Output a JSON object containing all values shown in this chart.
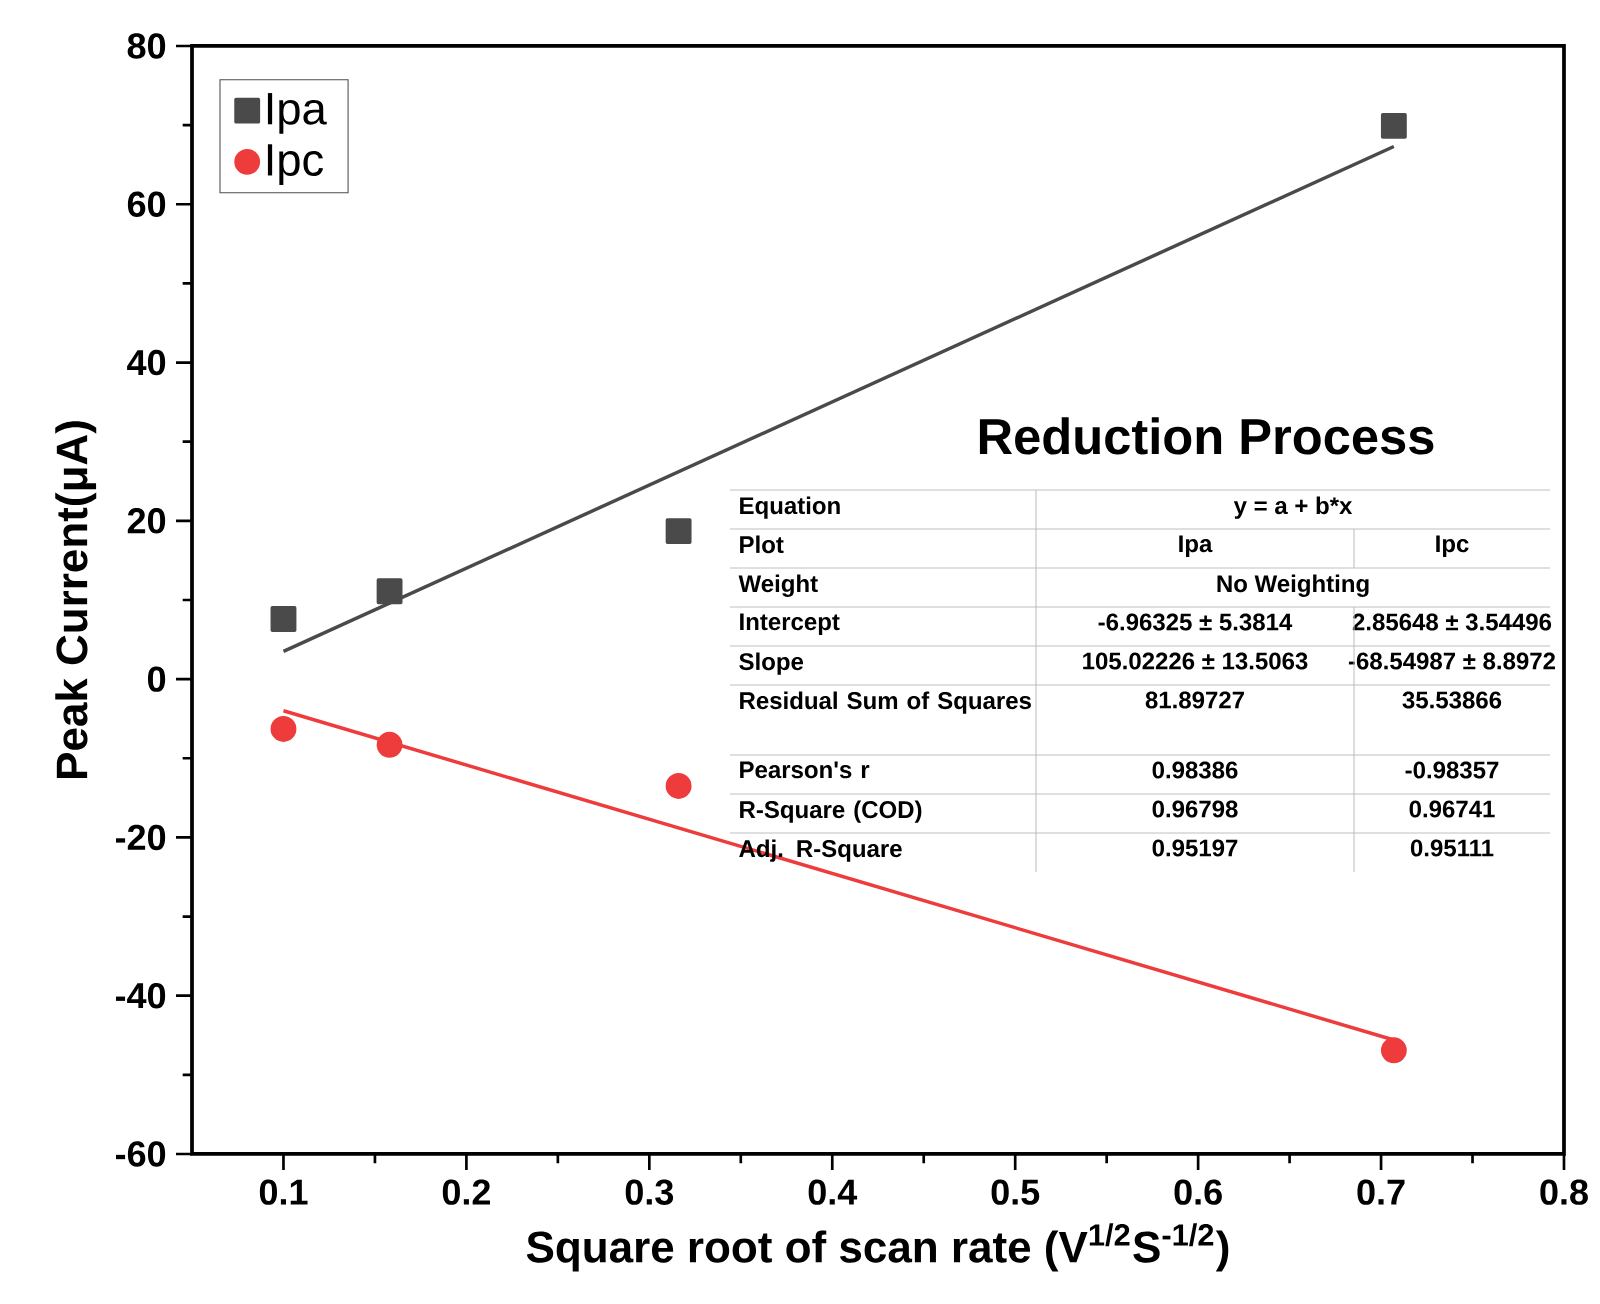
{
  "chart_data": {
    "type": "scatter",
    "xlabel": "Square root of scan rate (V$^{1/2}$S$^{-1/2}$)",
    "ylabel": "Peak Current(μA)",
    "xlim": [
      0.05,
      0.8
    ],
    "xticks": [
      0.1,
      0.2,
      0.3,
      0.4,
      0.5,
      0.6,
      0.7,
      0.8
    ],
    "ylim": [
      -60,
      80
    ],
    "yticks": [
      -60,
      -40,
      -20,
      0,
      20,
      40,
      60,
      80
    ],
    "grid": false,
    "legend": "top left",
    "series": [
      {
        "name": "Ipa",
        "color": "#4a4a4a",
        "marker": "square",
        "x": [
          0.1,
          0.158,
          0.316,
          0.707
        ],
        "values": [
          7.6,
          11.1,
          18.7,
          69.9
        ]
      },
      {
        "name": "Ipc",
        "color": "#ee3b3b",
        "marker": "circle",
        "x": [
          0.1,
          0.158,
          0.316,
          0.707
        ],
        "values": [
          -6.3,
          -8.3,
          -13.5,
          -46.9
        ]
      },
      {
        "type": "line",
        "color": "#4a4a4a",
        "marker": "none",
        "x": [
          0.1,
          0.707
        ],
        "values": [
          3.5,
          67.3
        ]
      },
      {
        "type": "line",
        "color": "#ee3b3b",
        "marker": "none",
        "x": [
          0.1,
          0.707
        ],
        "values": [
          -4.0,
          -45.6
        ]
      }
    ],
    "annotations": [
      "Reduction Process",
      "Equation",
      "y = a + b*x",
      "Plot",
      "Ipa",
      "Ipc",
      "Weight",
      "No Weighting",
      "Intercept",
      "-6.96325 ± 5.3814",
      "2.85648 ± 3.54496",
      "Slope",
      "105.02226 ± 13.5063",
      "-68.54987 ± 8.8972",
      "Residual Sum of Squares",
      "81.89727",
      "35.53866",
      "Pearson's r",
      "0.98386",
      "-0.98357",
      "R-Square (COD)",
      "0.96798",
      "0.96741",
      "Adj. R-Square",
      "0.95197",
      "0.95111"
    ]
  }
}
